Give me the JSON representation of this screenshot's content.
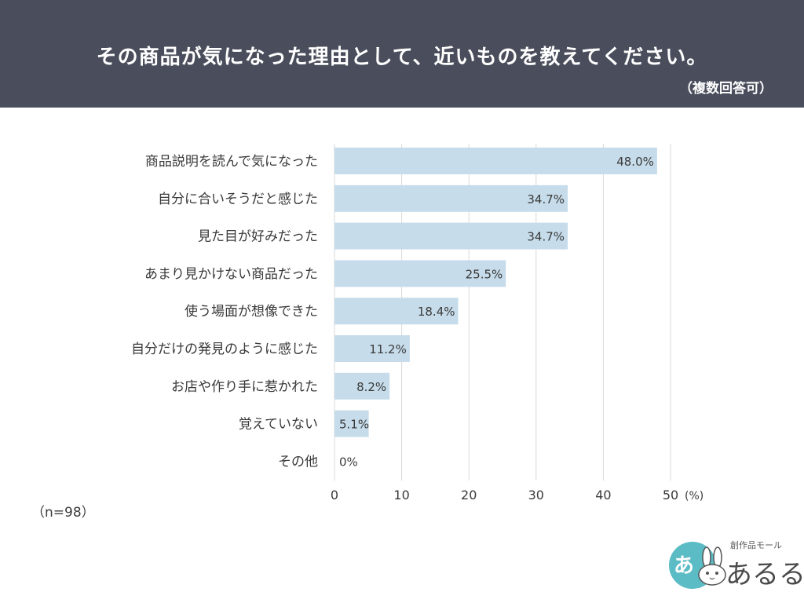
{
  "header": {
    "title": "その商品が気になった理由として、近いものを教えてください。",
    "note": "（複数回答可）"
  },
  "sample_label": "（n=98）",
  "logo": {
    "badge_char": "あ",
    "small_text": "創作品モール",
    "name": "あるる"
  },
  "colors": {
    "header_bg": "#4a4e5c",
    "bar": "#c6dcea",
    "grid": "#d9d9d9",
    "text": "#3a3a3a",
    "logo_circle": "#5bbcc5"
  },
  "chart_data": {
    "type": "bar",
    "orientation": "horizontal",
    "categories": [
      "商品説明を読んで気になった",
      "自分に合いそうだと感じた",
      "見た目が好みだった",
      "あまり見かけない商品だった",
      "使う場面が想像できた",
      "自分だけの発見のように感じた",
      "お店や作り手に惹かれた",
      "覚えていない",
      "その他"
    ],
    "values": [
      48.0,
      34.7,
      34.7,
      25.5,
      18.4,
      11.2,
      8.2,
      5.1,
      0
    ],
    "value_labels": [
      "48.0%",
      "34.7%",
      "34.7%",
      "25.5%",
      "18.4%",
      "11.2%",
      "8.2%",
      "5.1%",
      "0%"
    ],
    "xlim": [
      0,
      50
    ],
    "xticks": [
      0,
      10,
      20,
      30,
      40,
      50
    ],
    "xtick_labels": [
      "0",
      "10",
      "20",
      "30",
      "40",
      "50"
    ],
    "unit_label": "(%)",
    "grid": true
  }
}
